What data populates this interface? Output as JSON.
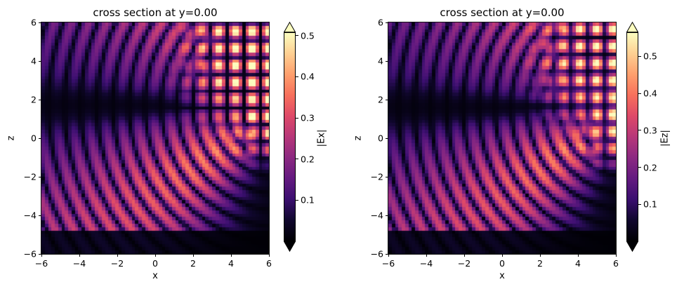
{
  "figure": {
    "background": "#ffffff"
  },
  "chart_data": {
    "type": "heatmap",
    "colormap": {
      "name": "magma",
      "stops": [
        [
          0.0,
          "#000004"
        ],
        [
          0.1,
          "#10072e"
        ],
        [
          0.2,
          "#3b0f70"
        ],
        [
          0.3,
          "#641a80"
        ],
        [
          0.4,
          "#8c2981"
        ],
        [
          0.5,
          "#b73779"
        ],
        [
          0.6,
          "#de4968"
        ],
        [
          0.7,
          "#f7705c"
        ],
        [
          0.8,
          "#fe9f6d"
        ],
        [
          0.9,
          "#fecf92"
        ],
        [
          1.0,
          "#fcfdbf"
        ]
      ]
    },
    "panels": [
      {
        "title": "cross section at y=0.00",
        "xlabel": "x",
        "ylabel": "z",
        "x_range": [
          -6,
          6
        ],
        "z_range": [
          -6,
          6
        ],
        "x_ticks": [
          -6,
          -4,
          -2,
          0,
          2,
          4,
          6
        ],
        "x_tick_labels": [
          "−6",
          "−4",
          "−2",
          "0",
          "2",
          "4",
          "6"
        ],
        "z_ticks": [
          6,
          4,
          2,
          0,
          -2,
          -4,
          -6
        ],
        "z_tick_labels": [
          "6",
          "4",
          "2",
          "0",
          "−2",
          "−4",
          "−6"
        ],
        "colorbar": {
          "label": "|Ex|",
          "vmin": 0,
          "vmax": 0.508,
          "ticks": [
            0.5,
            0.4,
            0.3,
            0.2,
            0.1
          ],
          "tick_labels": [
            "0.5",
            "0.4",
            "0.3",
            "0.2",
            "0.1"
          ],
          "extend": "both"
        },
        "field_model": {
          "source": {
            "x": 6.6,
            "z": 1.7
          },
          "k_radial": 3.7,
          "ring_phase": 0.3,
          "angular_lobes": [
            {
              "center_deg": 45,
              "sigma_deg": 27,
              "amp": 0.38
            },
            {
              "center_deg": -35,
              "sigma_deg": 19,
              "amp": 0.42
            },
            {
              "center_deg": 78,
              "sigma_deg": 14,
              "amp": 0.22
            }
          ],
          "shadow_notch": {
            "center_deg": 0,
            "sigma_deg": 4.5,
            "depth": 0.9
          },
          "decay": {
            "r0": 20,
            "power": 1.4
          },
          "standing_wave": {
            "kx": 3.55,
            "phase_x": 0.69,
            "kz": 3.55,
            "phase_z": 2.32,
            "amp": 0.58,
            "corner_mask": {
              "x0": 2.3,
              "z0": 1.35,
              "softness": 0.55
            },
            "edge_mask": {
              "x0": 4.7,
              "softness": 0.4,
              "z_lo": -0.9,
              "z_hi": 1.55,
              "amp": 0.8
            }
          },
          "substrate": {
            "z_top": -4.72,
            "attenuation": 0.15
          },
          "ambient": 0.012,
          "grid_nx": 68,
          "grid_nz": 69
        }
      },
      {
        "title": "cross section at y=0.00",
        "xlabel": "x",
        "ylabel": "z",
        "x_range": [
          -6,
          6
        ],
        "z_range": [
          -6,
          6
        ],
        "x_ticks": [
          -6,
          -4,
          -2,
          0,
          2,
          4,
          6
        ],
        "x_tick_labels": [
          "−6",
          "−4",
          "−2",
          "0",
          "2",
          "4",
          "6"
        ],
        "z_ticks": [
          6,
          4,
          2,
          0,
          -2,
          -4,
          -6
        ],
        "z_tick_labels": [
          "6",
          "4",
          "2",
          "0",
          "−2",
          "−4",
          "−6"
        ],
        "colorbar": {
          "label": "|Ez|",
          "vmin": 0,
          "vmax": 0.565,
          "ticks": [
            0.5,
            0.4,
            0.3,
            0.2,
            0.1
          ],
          "tick_labels": [
            "0.5",
            "0.4",
            "0.3",
            "0.2",
            "0.1"
          ],
          "extend": "both"
        },
        "field_model": {
          "source": {
            "x": 6.6,
            "z": 1.6
          },
          "k_radial": 3.7,
          "ring_phase": 0.9,
          "angular_lobes": [
            {
              "center_deg": 44,
              "sigma_deg": 27,
              "amp": 0.4
            },
            {
              "center_deg": -35,
              "sigma_deg": 19,
              "amp": 0.46
            },
            {
              "center_deg": 78,
              "sigma_deg": 14,
              "amp": 0.24
            }
          ],
          "shadow_notch": {
            "center_deg": 0,
            "sigma_deg": 4.5,
            "depth": 0.9
          },
          "decay": {
            "r0": 20,
            "power": 1.4
          },
          "standing_wave": {
            "kx": 3.55,
            "phase_x": 1.15,
            "kz": 3.55,
            "phase_z": 1.95,
            "amp": 0.62,
            "corner_mask": {
              "x0": 2.6,
              "z0": 1.25,
              "softness": 0.55
            },
            "edge_mask": {
              "x0": 4.7,
              "softness": 0.4,
              "z_lo": -1.2,
              "z_hi": 1.5,
              "amp": 0.8
            }
          },
          "substrate": {
            "z_top": -4.72,
            "attenuation": 0.15
          },
          "ambient": 0.012,
          "grid_nx": 68,
          "grid_nz": 69
        }
      }
    ]
  }
}
